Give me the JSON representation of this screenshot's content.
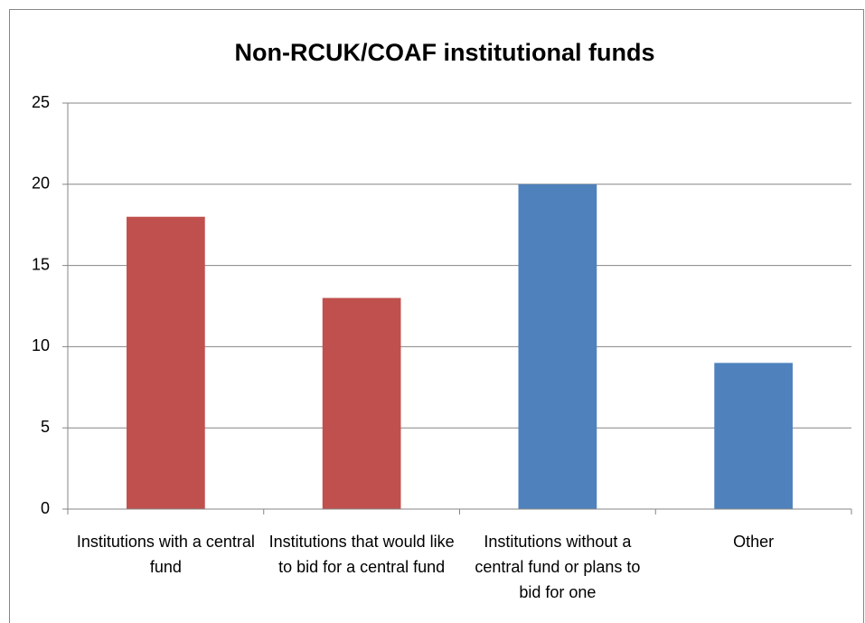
{
  "chart_data": {
    "type": "bar",
    "title": "Non-RCUK/COAF institutional funds",
    "categories": [
      "Institutions with a central fund",
      "Institutions that would like to bid for a central fund",
      "Institutions without a central fund or plans to bid for one",
      "Other"
    ],
    "values": [
      18,
      13,
      20,
      9
    ],
    "colors": [
      "#c0504d",
      "#c0504d",
      "#4f81bd",
      "#4f81bd"
    ],
    "ylim": [
      0,
      25
    ],
    "yticks": [
      0,
      5,
      10,
      15,
      20,
      25
    ],
    "grid": true
  }
}
